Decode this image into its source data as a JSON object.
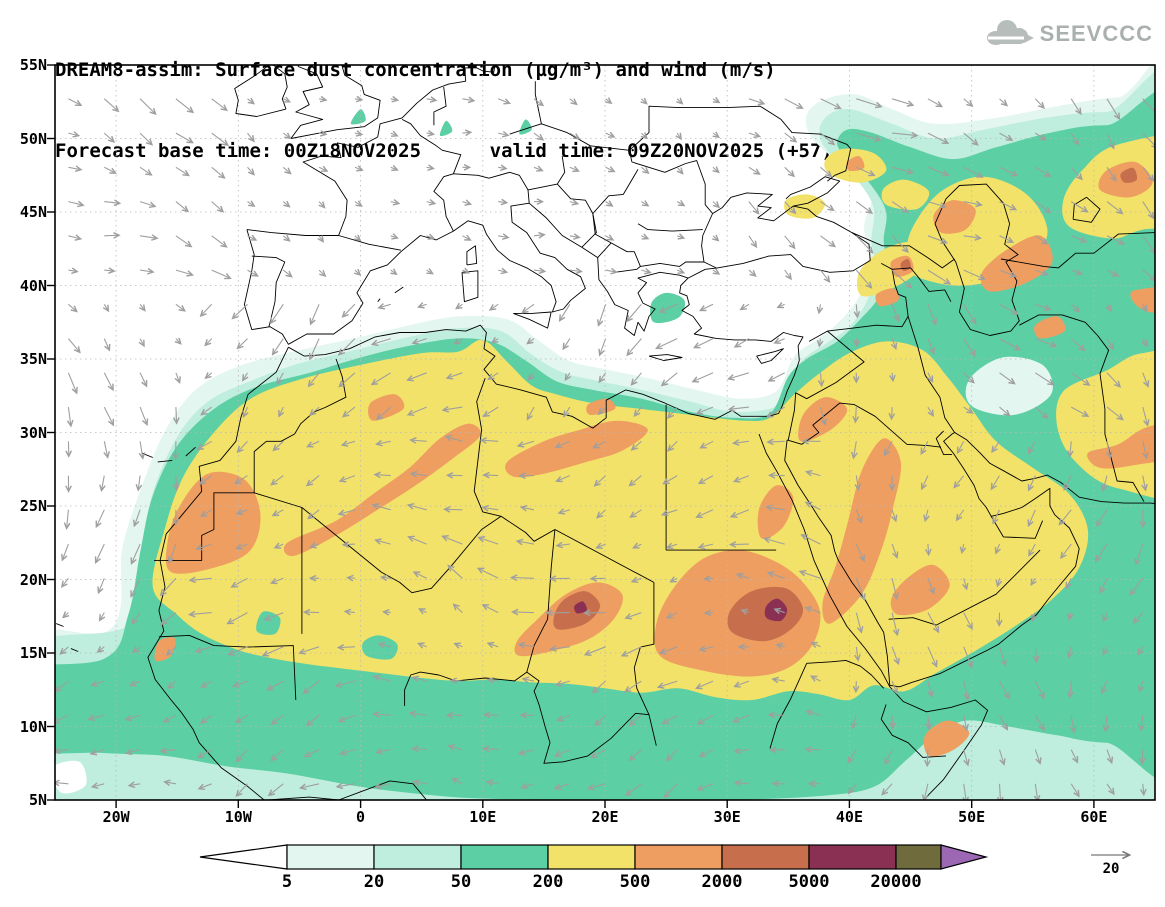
{
  "header": {
    "title_line1": "DREAM8-assim: Surface dust concentration (µg/m³) and wind (m/s)",
    "title_line2": "Forecast base time: 00Z18NOV2025      valid time: 09Z20NOV2025 (+57)",
    "logo_text": "SEEVCCC"
  },
  "axes": {
    "lat_labels": [
      "55N",
      "50N",
      "45N",
      "40N",
      "35N",
      "30N",
      "25N",
      "20N",
      "15N",
      "10N",
      "5N"
    ],
    "lon_labels": [
      "20W",
      "10W",
      "0",
      "10E",
      "20E",
      "30E",
      "40E",
      "50E",
      "60E"
    ]
  },
  "colorbar": {
    "labels": [
      "5",
      "20",
      "50",
      "200",
      "500",
      "2000",
      "5000",
      "20000"
    ],
    "under_color": "#ffffff",
    "colors": [
      "#e3f6f0",
      "#bfeede",
      "#5ccfa4",
      "#f2e269",
      "#ef9e61",
      "#c76f4d",
      "#8a3052",
      "#6f6b3c"
    ],
    "over_color": "#9c68b4",
    "outline_color": "#000000"
  },
  "wind": {
    "reference_label": "20",
    "arrow_color": "#9f9f9f"
  },
  "chart_data": {
    "type": "heatmap",
    "title": "DREAM8-assim: Surface dust concentration (µg/m³) and wind (m/s)",
    "subtitle": "Forecast base time: 00Z18NOV2025  valid time: 09Z20NOV2025 (+57)",
    "x": {
      "label": "longitude",
      "range_deg": [
        -25,
        65
      ],
      "ticks": [
        "20W",
        "10W",
        "0",
        "10E",
        "20E",
        "30E",
        "40E",
        "50E",
        "60E"
      ]
    },
    "y": {
      "label": "latitude",
      "range_deg": [
        5,
        55
      ],
      "ticks": [
        "5N",
        "10N",
        "15N",
        "20N",
        "25N",
        "30N",
        "35N",
        "40N",
        "45N",
        "50N",
        "55N"
      ]
    },
    "contour_levels": [
      5,
      20,
      50,
      200,
      500,
      2000,
      5000,
      20000
    ],
    "units": "µg/m³",
    "overlay": "wind vectors (m/s), reference arrow = 20 m/s",
    "legend_position": "bottom",
    "notable_features": [
      "200-500 µg/m³ plume covering most of the Sahara and the Arabian Peninsula",
      "500-2000 µg/m³ lobes over Mauritania, central Algeria/Libya, Chad, Sudan and western Arabia",
      "2000-5000 µg/m³ cores over Chad (~18E,18N) and Sudan (~33E,18N)",
      ">5000 µg/m³ maximum near 34E,18N",
      "50-200 µg/m³ band along the Sahel, Gulf of Guinea coast and Caspian / Central Asia region",
      "clean air (<5 µg/m³) over most of western and central Europe and the open Atlantic"
    ]
  }
}
